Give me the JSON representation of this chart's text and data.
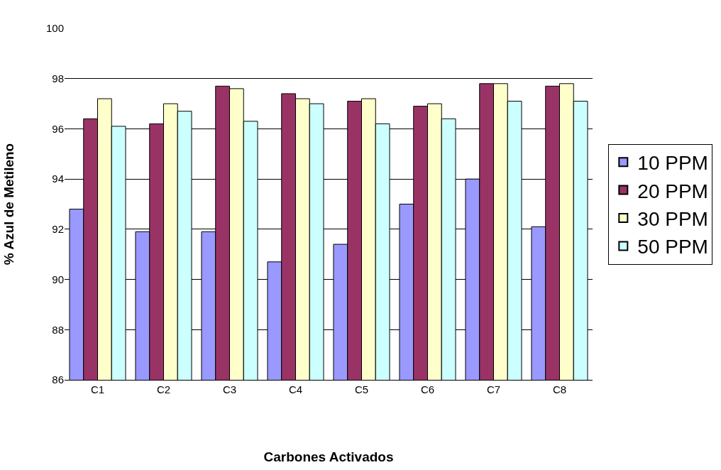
{
  "chart_data": {
    "type": "bar",
    "xlabel": "Carbones Activados",
    "ylabel": "% Azul de Metileno",
    "categories": [
      "C1",
      "C2",
      "C3",
      "C4",
      "C5",
      "C6",
      "C7",
      "C8"
    ],
    "series": [
      {
        "name": "10 PPM",
        "color": "#9999ff",
        "values": [
          92.8,
          91.9,
          91.9,
          90.7,
          91.4,
          93.0,
          94.0,
          92.1
        ]
      },
      {
        "name": "20 PPM",
        "color": "#993366",
        "values": [
          96.4,
          96.2,
          97.7,
          97.4,
          97.1,
          96.9,
          97.8,
          97.7
        ]
      },
      {
        "name": "30 PPM",
        "color": "#ffffcc",
        "values": [
          97.2,
          97.0,
          97.6,
          97.2,
          97.2,
          97.0,
          97.8,
          97.8
        ]
      },
      {
        "name": "50 PPM",
        "color": "#ccffff",
        "values": [
          96.1,
          96.7,
          96.3,
          97.0,
          96.2,
          96.4,
          97.1,
          97.1
        ]
      }
    ],
    "ylim": [
      86,
      100
    ],
    "yticks": [
      86,
      88,
      90,
      92,
      94,
      96,
      98,
      100
    ],
    "grid": "y",
    "legend": "right"
  }
}
